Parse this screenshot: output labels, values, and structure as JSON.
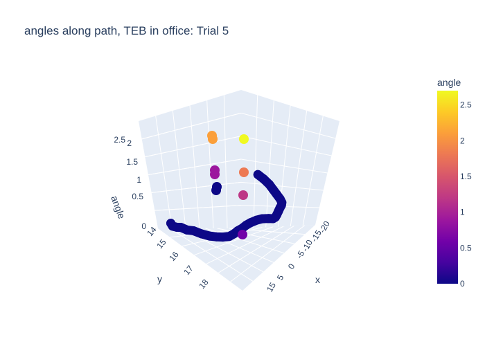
{
  "chart_data": {
    "type": "scatter3d",
    "title": "angles along path, TEB in office: Trial 5",
    "colorbar_title": "angle",
    "colorbar_ticks": [
      "0",
      "0.5",
      "1",
      "1.5",
      "2",
      "2.5"
    ],
    "colorscale": [
      "#0d0887",
      "#46039f",
      "#7201a8",
      "#9c179e",
      "#bd3786",
      "#d8576b",
      "#ed7953",
      "#fb9f3a",
      "#fdca26",
      "#f0f921"
    ],
    "cmin": 0,
    "cmax": 2.7,
    "axes": {
      "x": {
        "title": "x",
        "ticks": [
          "15",
          "5",
          "0",
          "-5",
          "-10",
          "-15",
          "-20"
        ]
      },
      "y": {
        "title": "y",
        "ticks": [
          "14",
          "15",
          "16",
          "17",
          "18"
        ]
      },
      "z": {
        "title": "angle",
        "ticks": [
          "0",
          "0.5",
          "1",
          "1.5",
          "2",
          "2.5"
        ]
      }
    },
    "path_low": [
      [
        14.0,
        0.05
      ],
      [
        14.1,
        0.0
      ],
      [
        14.3,
        0.0
      ],
      [
        14.5,
        0.02
      ],
      [
        14.8,
        0.0
      ],
      [
        15.1,
        0.02
      ],
      [
        15.5,
        0.0
      ],
      [
        15.9,
        0.0
      ],
      [
        16.2,
        0.02
      ],
      [
        16.5,
        0.05
      ],
      [
        16.8,
        0.1
      ],
      [
        17.0,
        0.18
      ],
      [
        17.15,
        0.26
      ],
      [
        17.35,
        0.34
      ],
      [
        17.5,
        0.42
      ],
      [
        17.7,
        0.5
      ],
      [
        17.95,
        0.58
      ],
      [
        18.2,
        0.64
      ],
      [
        18.5,
        0.68
      ],
      [
        18.7,
        0.7
      ],
      [
        18.8,
        0.74
      ],
      [
        18.85,
        0.8
      ],
      [
        18.9,
        0.88
      ],
      [
        18.95,
        0.96
      ],
      [
        19.0,
        1.02
      ],
      [
        19.0,
        1.08
      ],
      [
        18.9,
        1.14
      ],
      [
        18.7,
        1.22
      ],
      [
        18.5,
        1.3
      ],
      [
        18.3,
        1.38
      ],
      [
        18.0,
        1.46
      ],
      [
        17.7,
        1.52
      ]
    ],
    "points": [
      {
        "xy": [
          15.2,
          2.15
        ],
        "angle": 1.95
      },
      {
        "xy": [
          15.2,
          2.2
        ],
        "angle": 1.98
      },
      {
        "xy": [
          15.2,
          1.55
        ],
        "angle": 0.92
      },
      {
        "xy": [
          15.2,
          1.6
        ],
        "angle": 0.9
      },
      {
        "xy": [
          15.2,
          1.02
        ],
        "angle": 0.1
      },
      {
        "xy": [
          15.2,
          0.98
        ],
        "angle": 0.1
      },
      {
        "xy": [
          18.0,
          2.2
        ],
        "angle": 2.7
      },
      {
        "xy": [
          18.0,
          1.65
        ],
        "angle": 1.9
      },
      {
        "xy": [
          18.0,
          1.02
        ],
        "angle": 1.2
      },
      {
        "xy": [
          17.6,
          0.35
        ],
        "angle": 0.6
      }
    ]
  }
}
